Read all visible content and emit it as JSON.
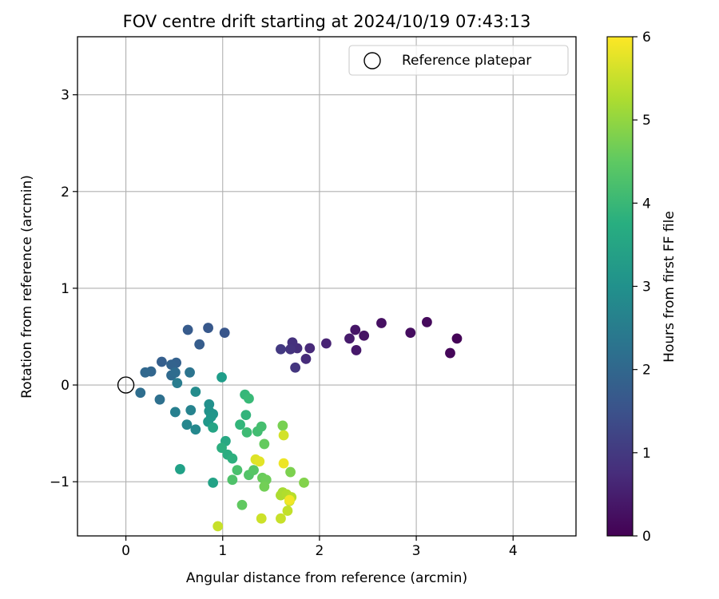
{
  "chart_data": {
    "type": "scatter",
    "title": "FOV centre drift starting at 2024/10/19 07:43:13",
    "xlabel": "Angular distance from reference (arcmin)",
    "ylabel": "Rotation from reference (arcmin)",
    "xlim": [
      -0.5,
      4.65
    ],
    "ylim": [
      -1.56,
      3.6
    ],
    "xticks": [
      0,
      1,
      2,
      3,
      4
    ],
    "yticks": [
      -1,
      0,
      1,
      2,
      3
    ],
    "grid": true,
    "legend": {
      "position": "top-right",
      "entries": [
        "Reference platepar"
      ]
    },
    "reference_point": {
      "x": 0,
      "y": 0,
      "label": "Reference platepar"
    },
    "colorbar": {
      "label": "Hours from first FF file",
      "colormap": "viridis",
      "range": [
        0,
        6
      ],
      "ticks": [
        0,
        1,
        2,
        3,
        4,
        5,
        6
      ]
    },
    "points": [
      {
        "x": 3.42,
        "y": 0.48,
        "c": 0.05
      },
      {
        "x": 3.35,
        "y": 0.33,
        "c": 0.1
      },
      {
        "x": 3.11,
        "y": 0.65,
        "c": 0.15
      },
      {
        "x": 2.94,
        "y": 0.54,
        "c": 0.2
      },
      {
        "x": 2.64,
        "y": 0.64,
        "c": 0.25
      },
      {
        "x": 2.46,
        "y": 0.51,
        "c": 0.3
      },
      {
        "x": 2.37,
        "y": 0.57,
        "c": 0.35
      },
      {
        "x": 2.38,
        "y": 0.36,
        "c": 0.4
      },
      {
        "x": 2.31,
        "y": 0.48,
        "c": 0.45
      },
      {
        "x": 2.07,
        "y": 0.43,
        "c": 0.6
      },
      {
        "x": 1.9,
        "y": 0.38,
        "c": 0.7
      },
      {
        "x": 1.86,
        "y": 0.27,
        "c": 0.75
      },
      {
        "x": 1.77,
        "y": 0.38,
        "c": 0.8
      },
      {
        "x": 1.72,
        "y": 0.44,
        "c": 0.85
      },
      {
        "x": 1.7,
        "y": 0.37,
        "c": 0.9
      },
      {
        "x": 1.75,
        "y": 0.18,
        "c": 0.95
      },
      {
        "x": 1.6,
        "y": 0.37,
        "c": 1.0
      },
      {
        "x": 1.02,
        "y": 0.54,
        "c": 1.6
      },
      {
        "x": 0.85,
        "y": 0.59,
        "c": 1.65
      },
      {
        "x": 0.64,
        "y": 0.57,
        "c": 1.7
      },
      {
        "x": 0.76,
        "y": 0.42,
        "c": 1.75
      },
      {
        "x": 0.37,
        "y": 0.24,
        "c": 1.8
      },
      {
        "x": 0.52,
        "y": 0.23,
        "c": 1.85
      },
      {
        "x": 0.47,
        "y": 0.21,
        "c": 1.9
      },
      {
        "x": 0.26,
        "y": 0.14,
        "c": 1.95
      },
      {
        "x": 0.2,
        "y": 0.13,
        "c": 2.0
      },
      {
        "x": 0.47,
        "y": 0.1,
        "c": 2.05
      },
      {
        "x": 0.51,
        "y": 0.13,
        "c": 2.1
      },
      {
        "x": 0.15,
        "y": -0.08,
        "c": 2.15
      },
      {
        "x": 0.35,
        "y": -0.15,
        "c": 2.2
      },
      {
        "x": 0.66,
        "y": 0.13,
        "c": 2.3
      },
      {
        "x": 0.53,
        "y": 0.02,
        "c": 2.5
      },
      {
        "x": 0.51,
        "y": -0.28,
        "c": 2.6
      },
      {
        "x": 0.67,
        "y": -0.26,
        "c": 2.7
      },
      {
        "x": 0.63,
        "y": -0.41,
        "c": 2.75
      },
      {
        "x": 0.72,
        "y": -0.46,
        "c": 2.8
      },
      {
        "x": 0.72,
        "y": -0.07,
        "c": 2.9
      },
      {
        "x": 0.86,
        "y": -0.2,
        "c": 3.0
      },
      {
        "x": 0.86,
        "y": -0.27,
        "c": 3.05
      },
      {
        "x": 0.9,
        "y": -0.3,
        "c": 3.1
      },
      {
        "x": 0.88,
        "y": -0.33,
        "c": 3.15
      },
      {
        "x": 0.85,
        "y": -0.38,
        "c": 3.2
      },
      {
        "x": 0.99,
        "y": 0.08,
        "c": 3.3
      },
      {
        "x": 0.56,
        "y": -0.87,
        "c": 3.4
      },
      {
        "x": 0.9,
        "y": -1.01,
        "c": 3.45
      },
      {
        "x": 0.9,
        "y": -0.44,
        "c": 3.5
      },
      {
        "x": 1.03,
        "y": -0.58,
        "c": 3.6
      },
      {
        "x": 1.05,
        "y": -0.72,
        "c": 3.7
      },
      {
        "x": 0.99,
        "y": -0.65,
        "c": 3.75
      },
      {
        "x": 1.1,
        "y": -0.76,
        "c": 3.8
      },
      {
        "x": 1.24,
        "y": -0.31,
        "c": 3.9
      },
      {
        "x": 1.18,
        "y": -0.41,
        "c": 3.95
      },
      {
        "x": 1.23,
        "y": -0.1,
        "c": 4.0
      },
      {
        "x": 1.27,
        "y": -0.14,
        "c": 4.05
      },
      {
        "x": 1.25,
        "y": -0.49,
        "c": 4.1
      },
      {
        "x": 1.36,
        "y": -0.48,
        "c": 4.15
      },
      {
        "x": 1.4,
        "y": -0.43,
        "c": 4.2
      },
      {
        "x": 1.15,
        "y": -0.88,
        "c": 4.25
      },
      {
        "x": 1.1,
        "y": -0.98,
        "c": 4.3
      },
      {
        "x": 1.27,
        "y": -0.93,
        "c": 4.35
      },
      {
        "x": 1.32,
        "y": -0.88,
        "c": 4.4
      },
      {
        "x": 1.2,
        "y": -1.24,
        "c": 4.5
      },
      {
        "x": 1.43,
        "y": -0.61,
        "c": 4.55
      },
      {
        "x": 1.41,
        "y": -0.96,
        "c": 4.6
      },
      {
        "x": 1.45,
        "y": -0.98,
        "c": 4.65
      },
      {
        "x": 1.43,
        "y": -1.05,
        "c": 4.7
      },
      {
        "x": 1.62,
        "y": -0.42,
        "c": 4.75
      },
      {
        "x": 1.7,
        "y": -0.9,
        "c": 4.8
      },
      {
        "x": 1.84,
        "y": -1.01,
        "c": 4.85
      },
      {
        "x": 1.62,
        "y": -1.11,
        "c": 5.2
      },
      {
        "x": 1.6,
        "y": -1.14,
        "c": 5.25
      },
      {
        "x": 1.66,
        "y": -1.13,
        "c": 5.3
      },
      {
        "x": 1.71,
        "y": -1.16,
        "c": 5.35
      },
      {
        "x": 1.69,
        "y": -1.2,
        "c": 5.4
      },
      {
        "x": 1.67,
        "y": -1.3,
        "c": 5.45
      },
      {
        "x": 1.6,
        "y": -1.38,
        "c": 5.5
      },
      {
        "x": 1.4,
        "y": -1.38,
        "c": 5.55
      },
      {
        "x": 0.95,
        "y": -1.46,
        "c": 5.5
      },
      {
        "x": 1.63,
        "y": -0.52,
        "c": 5.6
      },
      {
        "x": 1.34,
        "y": -0.77,
        "c": 5.7
      },
      {
        "x": 1.38,
        "y": -0.79,
        "c": 5.75
      },
      {
        "x": 1.63,
        "y": -0.81,
        "c": 5.85
      },
      {
        "x": 1.69,
        "y": -1.19,
        "c": 5.9
      }
    ]
  }
}
